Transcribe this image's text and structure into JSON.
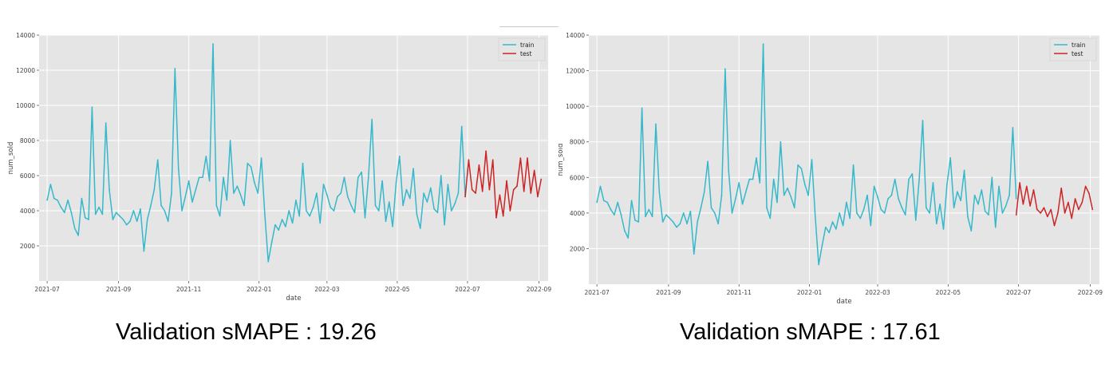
{
  "chart_data": [
    {
      "type": "line",
      "title": "",
      "xlabel": "date",
      "ylabel": "num_sold",
      "grid": true,
      "legend_position": "top-right",
      "x_ticks": [
        "2021-07",
        "2021-09",
        "2021-11",
        "2022-01",
        "2022-03",
        "2022-05",
        "2022-07",
        "2022-09"
      ],
      "y_ticks": [
        2000,
        4000,
        6000,
        8000,
        10000,
        12000,
        14000
      ],
      "ylim": [
        0,
        14000
      ],
      "xlim": [
        -7,
        435
      ],
      "caption": "Validation sMAPE : 19.26",
      "series": [
        {
          "name": "train",
          "color": "#36b8cb",
          "x": [
            0,
            3,
            6,
            9,
            12,
            15,
            18,
            21,
            24,
            27,
            30,
            33,
            36,
            39,
            42,
            45,
            48,
            51,
            54,
            57,
            60,
            63,
            66,
            69,
            72,
            75,
            78,
            81,
            84,
            87,
            90,
            93,
            96,
            99,
            102,
            105,
            108,
            111,
            114,
            117,
            120,
            123,
            126,
            129,
            132,
            135,
            138,
            141,
            144,
            147,
            150,
            153,
            156,
            159,
            162,
            165,
            168,
            171,
            174,
            177,
            180,
            183,
            186,
            189,
            192,
            195,
            198,
            201,
            204,
            207,
            210,
            213,
            216,
            219,
            222,
            225,
            228,
            231,
            234,
            237,
            240,
            243,
            246,
            249,
            252,
            255,
            258,
            261,
            264,
            267,
            270,
            273,
            276,
            279,
            282,
            285,
            288,
            291,
            294,
            297,
            300,
            303,
            306,
            309,
            312,
            315,
            318,
            321,
            324,
            327,
            330,
            333,
            336,
            339,
            342,
            345,
            348,
            351,
            354,
            357,
            360,
            363
          ],
          "y": [
            4600,
            5500,
            4700,
            4600,
            4200,
            3900,
            4600,
            3900,
            3000,
            2600,
            4700,
            3600,
            3500,
            9900,
            3800,
            4200,
            3800,
            9000,
            5200,
            3500,
            3900,
            3700,
            3500,
            3200,
            3400,
            4000,
            3400,
            4100,
            1700,
            3500,
            4300,
            5200,
            6900,
            4300,
            4000,
            3400,
            5000,
            12100,
            6400,
            4000,
            4800,
            5700,
            4500,
            5200,
            5900,
            5900,
            7100,
            5700,
            13500,
            4300,
            3700,
            5900,
            4600,
            8000,
            5000,
            5400,
            4900,
            4300,
            6700,
            6500,
            5600,
            5000,
            7000,
            3800,
            1100,
            2200,
            3200,
            2900,
            3500,
            3100,
            4000,
            3300,
            4600,
            3700,
            6700,
            4000,
            3700,
            4200,
            5000,
            3300,
            5500,
            4900,
            4200,
            4000,
            4800,
            5000,
            5900,
            4800,
            4300,
            3900,
            5900,
            6200,
            3600,
            5900,
            9200,
            4300,
            4000,
            5700,
            3400,
            4500,
            3100,
            5600,
            7100,
            4300,
            5200,
            4700,
            6400,
            3800,
            3000,
            5000,
            4500,
            5300,
            4100,
            3900,
            6000,
            3200,
            5500,
            4000,
            4400,
            5000,
            8800,
            4800
          ]
        },
        {
          "name": "test",
          "color": "#cc2424",
          "x": [
            363,
            366,
            369,
            372,
            375,
            378,
            381,
            384,
            387,
            390,
            393,
            396,
            399,
            402,
            405,
            408,
            411,
            414,
            417,
            420,
            423,
            426,
            429
          ],
          "y": [
            4800,
            6900,
            5200,
            5000,
            6600,
            5100,
            7400,
            5200,
            6900,
            3600,
            4900,
            3700,
            5700,
            4000,
            5200,
            5400,
            7000,
            5100,
            7000,
            5000,
            6300,
            4800,
            5800
          ]
        }
      ]
    },
    {
      "type": "line",
      "title": "",
      "xlabel": "date",
      "ylabel": "num_sold",
      "grid": true,
      "legend_position": "top-right",
      "x_ticks": [
        "2021-07",
        "2021-09",
        "2021-11",
        "2022-01",
        "2022-03",
        "2022-05",
        "2022-07",
        "2022-09"
      ],
      "y_ticks": [
        2000,
        4000,
        6000,
        8000,
        10000,
        12000,
        14000
      ],
      "ylim": [
        0,
        14000
      ],
      "xlim": [
        -7,
        435
      ],
      "caption": "Validation sMAPE : 17.61",
      "series": [
        {
          "name": "train",
          "color": "#36b8cb",
          "x": [
            0,
            3,
            6,
            9,
            12,
            15,
            18,
            21,
            24,
            27,
            30,
            33,
            36,
            39,
            42,
            45,
            48,
            51,
            54,
            57,
            60,
            63,
            66,
            69,
            72,
            75,
            78,
            81,
            84,
            87,
            90,
            93,
            96,
            99,
            102,
            105,
            108,
            111,
            114,
            117,
            120,
            123,
            126,
            129,
            132,
            135,
            138,
            141,
            144,
            147,
            150,
            153,
            156,
            159,
            162,
            165,
            168,
            171,
            174,
            177,
            180,
            183,
            186,
            189,
            192,
            195,
            198,
            201,
            204,
            207,
            210,
            213,
            216,
            219,
            222,
            225,
            228,
            231,
            234,
            237,
            240,
            243,
            246,
            249,
            252,
            255,
            258,
            261,
            264,
            267,
            270,
            273,
            276,
            279,
            282,
            285,
            288,
            291,
            294,
            297,
            300,
            303,
            306,
            309,
            312,
            315,
            318,
            321,
            324,
            327,
            330,
            333,
            336,
            339,
            342,
            345,
            348,
            351,
            354,
            357,
            360,
            363
          ],
          "y": [
            4600,
            5500,
            4700,
            4600,
            4200,
            3900,
            4600,
            3900,
            3000,
            2600,
            4700,
            3600,
            3500,
            9900,
            3800,
            4200,
            3800,
            9000,
            5200,
            3500,
            3900,
            3700,
            3500,
            3200,
            3400,
            4000,
            3400,
            4100,
            1700,
            3500,
            4300,
            5200,
            6900,
            4300,
            4000,
            3400,
            5000,
            12100,
            6400,
            4000,
            4800,
            5700,
            4500,
            5200,
            5900,
            5900,
            7100,
            5700,
            13500,
            4300,
            3700,
            5900,
            4600,
            8000,
            5000,
            5400,
            4900,
            4300,
            6700,
            6500,
            5600,
            5000,
            7000,
            3800,
            1100,
            2200,
            3200,
            2900,
            3500,
            3100,
            4000,
            3300,
            4600,
            3700,
            6700,
            4000,
            3700,
            4200,
            5000,
            3300,
            5500,
            4900,
            4200,
            4000,
            4800,
            5000,
            5900,
            4800,
            4300,
            3900,
            5900,
            6200,
            3600,
            5900,
            9200,
            4300,
            4000,
            5700,
            3400,
            4500,
            3100,
            5600,
            7100,
            4300,
            5200,
            4700,
            6400,
            3800,
            3000,
            5000,
            4500,
            5300,
            4100,
            3900,
            6000,
            3200,
            5500,
            4000,
            4400,
            5000,
            8800,
            4800
          ]
        },
        {
          "name": "test",
          "color": "#cc2424",
          "x": [
            363,
            366,
            369,
            372,
            375,
            378,
            381,
            384,
            387,
            390,
            393,
            396,
            399,
            402,
            405,
            408,
            411,
            414,
            417,
            420,
            423,
            426,
            429
          ],
          "y": [
            3900,
            5700,
            4500,
            5500,
            4400,
            5300,
            4200,
            4000,
            4300,
            3800,
            4200,
            3300,
            4000,
            5400,
            4000,
            4600,
            3700,
            4800,
            4200,
            4600,
            5500,
            5100,
            4200
          ]
        }
      ]
    }
  ]
}
